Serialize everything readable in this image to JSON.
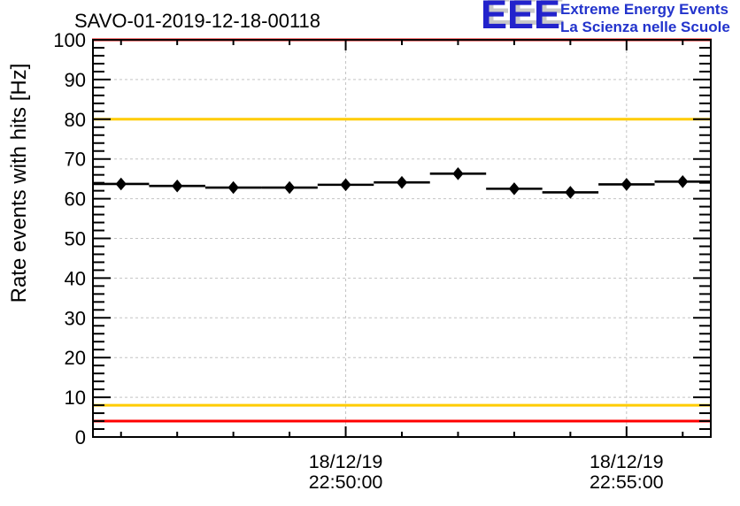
{
  "header": {
    "title": "SAVO-01-2019-12-18-00118"
  },
  "logo": {
    "acronym": "EEE",
    "line1": "Extreme Energy Events",
    "line2": "La Scienza nelle Scuole",
    "accent_color": "#2222cc"
  },
  "chart_data": {
    "type": "scatter",
    "title": "SAVO-01-2019-12-18-00118",
    "xlabel": "",
    "ylabel": "Rate events with hits [Hz]",
    "ylim": [
      0,
      100
    ],
    "xlim_minutes_from_22_50": [
      -4.5,
      6.5
    ],
    "grid": true,
    "y_major_tick_labels": [
      "0",
      "10",
      "20",
      "30",
      "40",
      "50",
      "60",
      "70",
      "80",
      "90",
      "100"
    ],
    "y_minor_tick_step_hz": 2,
    "x_minor_tick_step_minutes": 1,
    "x_tick_labels": [
      {
        "date": "18/12/19",
        "time": "22:50:00",
        "minutes_from_22_50": 0
      },
      {
        "date": "18/12/19",
        "time": "22:55:00",
        "minutes_from_22_50": 5
      }
    ],
    "points": [
      {
        "time": "22:46:00",
        "rate_hz": 63.7
      },
      {
        "time": "22:47:00",
        "rate_hz": 63.2
      },
      {
        "time": "22:48:00",
        "rate_hz": 62.8
      },
      {
        "time": "22:49:00",
        "rate_hz": 62.8
      },
      {
        "time": "22:50:00",
        "rate_hz": 63.5
      },
      {
        "time": "22:51:00",
        "rate_hz": 64.1
      },
      {
        "time": "22:52:00",
        "rate_hz": 66.3
      },
      {
        "time": "22:53:00",
        "rate_hz": 62.5
      },
      {
        "time": "22:54:00",
        "rate_hz": 61.6
      },
      {
        "time": "22:55:00",
        "rate_hz": 63.6
      },
      {
        "time": "22:56:00",
        "rate_hz": 64.3
      }
    ],
    "x_error_minutes": 0.5,
    "y_error_hz": 0.5,
    "marker": {
      "shape": "diamond",
      "color": "#000000"
    },
    "reference_lines": [
      {
        "y": 100,
        "color": "#ff0000"
      },
      {
        "y": 80,
        "color": "#ffcc00"
      },
      {
        "y": 8,
        "color": "#ffcc00"
      },
      {
        "y": 4,
        "color": "#ff0000"
      }
    ],
    "colors": {
      "grid": "#c4c4c4",
      "frame": "#000000",
      "background": "#ffffff"
    }
  }
}
